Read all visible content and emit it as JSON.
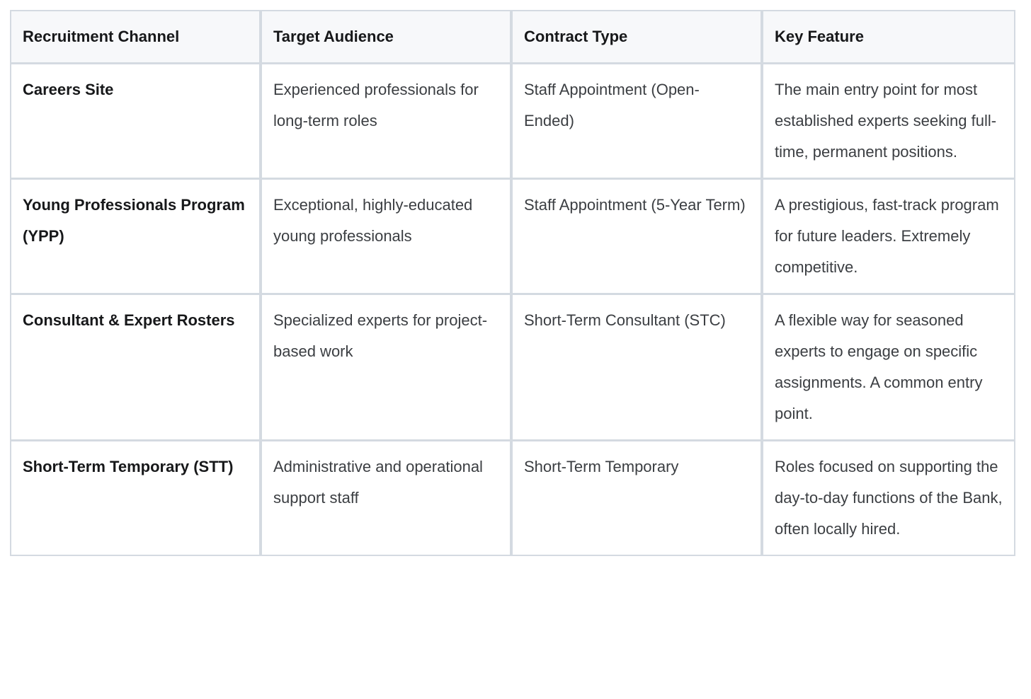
{
  "table": {
    "headers": [
      "Recruitment Channel",
      "Target Audience",
      "Contract Type",
      "Key Feature"
    ],
    "rows": [
      {
        "channel": "Careers Site",
        "audience": "Experienced professionals for long-term roles",
        "contract": "Staff Appointment (Open-Ended)",
        "feature": "The main entry point for most established experts seeking full-time, permanent positions."
      },
      {
        "channel": "Young Professionals Program (YPP)",
        "audience": "Exceptional, highly-educated young professionals",
        "contract": "Staff Appointment (5-Year Term)",
        "feature": "A prestigious, fast-track program for future leaders. Extremely competitive."
      },
      {
        "channel": "Consultant & Expert Rosters",
        "audience": "Specialized experts for project-based work",
        "contract": "Short-Term Consultant (STC)",
        "feature": "A flexible way for seasoned experts to engage on specific assignments. A common entry point."
      },
      {
        "channel": "Short-Term Temporary (STT)",
        "audience": "Administrative and operational support staff",
        "contract": "Short-Term Temporary",
        "feature": "Roles focused on supporting the day-to-day functions of the Bank, often locally hired."
      }
    ]
  },
  "colors": {
    "border": "#d4dae1",
    "header_background": "#f7f8fa",
    "header_text": "#17181a",
    "row_background": "#ffffff",
    "body_text": "#3b3e42"
  }
}
